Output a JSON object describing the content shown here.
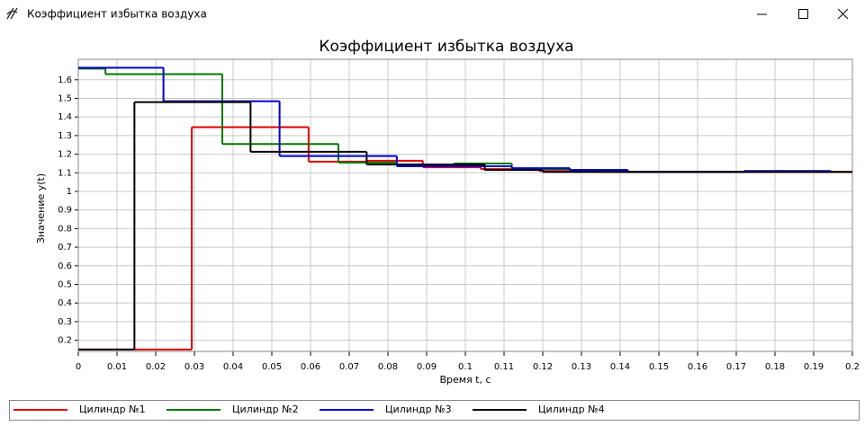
{
  "window_title": "Коэффициент избытка воздуха",
  "chart_data": {
    "type": "step",
    "title": "Коэффициент избытка воздуха",
    "x_label": "Время t, с",
    "y_label": "Значение y(t)",
    "xlim": [
      0,
      0.2
    ],
    "ylim": [
      0.14,
      1.71
    ],
    "xticks": [
      0,
      0.01,
      0.02,
      0.03,
      0.04,
      0.05,
      0.06,
      0.07,
      0.08,
      0.09,
      0.1,
      0.11,
      0.12,
      0.13,
      0.14,
      0.15,
      0.16,
      0.17,
      0.18,
      0.19,
      0.2
    ],
    "yticks": [
      0.2,
      0.3,
      0.4,
      0.5,
      0.6,
      0.7,
      0.8,
      0.9,
      1,
      1.1,
      1.2,
      1.3,
      1.4,
      1.5,
      1.6
    ],
    "grid": true,
    "legend": "bottom",
    "series": [
      {
        "name": "Цилиндр №1",
        "color": "#e00000",
        "x_edges": [
          0,
          0.0293,
          0.0595,
          0.0745,
          0.089,
          0.104,
          0.119,
          0.134,
          0.2
        ],
        "values": [
          0.15,
          1.345,
          1.16,
          1.165,
          1.13,
          1.12,
          1.11,
          1.105
        ]
      },
      {
        "name": "Цилиндр №2",
        "color": "#007800",
        "x_edges": [
          0,
          0.007,
          0.0372,
          0.0672,
          0.082,
          0.097,
          0.112,
          0.127,
          0.142
        ],
        "values": [
          1.66,
          1.63,
          1.255,
          1.155,
          1.145,
          1.15,
          1.12,
          1.115
        ]
      },
      {
        "name": "Цилиндр №3",
        "color": "#0000d0",
        "x_edges": [
          0,
          0.022,
          0.052,
          0.0823,
          0.112,
          0.127,
          0.142,
          0.172,
          0.1945
        ],
        "values": [
          1.665,
          1.485,
          1.19,
          1.135,
          1.125,
          1.115,
          1.105,
          1.11
        ]
      },
      {
        "name": "Цилиндр №4",
        "color": "#000000",
        "x_edges": [
          0,
          0.0145,
          0.0445,
          0.0745,
          0.105,
          0.12,
          0.2
        ],
        "values": [
          0.15,
          1.48,
          1.213,
          1.145,
          1.115,
          1.105
        ]
      }
    ]
  }
}
